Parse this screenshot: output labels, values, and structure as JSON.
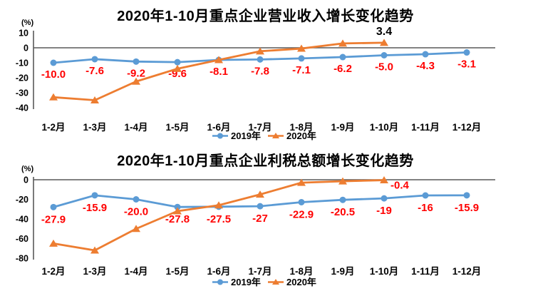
{
  "colors": {
    "series_2019": "#5B9BD5",
    "series_2020": "#ED7D31",
    "data_label_red": "#FF0000",
    "axis_line": "#595959",
    "text": "#000000",
    "background": "#FFFFFF"
  },
  "chart_data": [
    {
      "type": "line",
      "title": "2020年1-10月重点企业营业收入增长变化趋势",
      "unit_label": "(%)",
      "categories": [
        "1-2月",
        "1-3月",
        "1-4月",
        "1-5月",
        "1-6月",
        "1-7月",
        "1-8月",
        "1-9月",
        "1-10月",
        "1-11月",
        "1-12月"
      ],
      "y_axis": {
        "ticks": [
          10,
          0,
          -10,
          -20,
          -30,
          -40
        ],
        "max": 10,
        "min": -40,
        "grid": false
      },
      "series": [
        {
          "name": "2019年",
          "color": "#5B9BD5",
          "marker": "circle",
          "values": [
            -10.0,
            -7.6,
            -9.2,
            -9.6,
            -8.1,
            -7.8,
            -7.1,
            -6.2,
            -5.0,
            -4.3,
            -3.1
          ],
          "labels": [
            "-10.0",
            "-7.6",
            "-9.2",
            "-9.6",
            "-8.1",
            "-7.8",
            "-7.1",
            "-6.2",
            "-5.0",
            "-4.3",
            "-3.1"
          ],
          "labels_color": "#FF0000",
          "labels_position": "below"
        },
        {
          "name": "2020年",
          "color": "#ED7D31",
          "marker": "triangle",
          "values": [
            -33,
            -35,
            -22.5,
            -14,
            -8.1,
            -2.3,
            -0.5,
            2.9,
            3.4
          ],
          "last_point_label": {
            "text": "3.4",
            "color": "#000000",
            "position": "above"
          }
        }
      ],
      "legend": {
        "position": "bottom",
        "items": [
          "2019年",
          "2020年"
        ]
      }
    },
    {
      "type": "line",
      "title": "2020年1-10月重点企业利税总额增长变化趋势",
      "unit_label": "(%)",
      "categories": [
        "1-2月",
        "1-3月",
        "1-4月",
        "1-5月",
        "1-6月",
        "1-7月",
        "1-8月",
        "1-9月",
        "1-10月",
        "1-11月",
        "1-12月"
      ],
      "y_axis": {
        "ticks": [
          0,
          -20,
          -40,
          -60,
          -80
        ],
        "max": 0,
        "min": -80,
        "grid": false
      },
      "series": [
        {
          "name": "2019年",
          "color": "#5B9BD5",
          "marker": "circle",
          "values": [
            -27.9,
            -15.9,
            -20.0,
            -27.8,
            -27.5,
            -27,
            -22.9,
            -20.5,
            -19,
            -16,
            -15.9
          ],
          "labels": [
            "-27.9",
            "-15.9",
            "-20.0",
            "-27.8",
            "-27.5",
            "-27",
            "-22.9",
            "-20.5",
            "-19",
            "-16",
            "-15.9"
          ],
          "labels_color": "#FF0000",
          "labels_position": "below"
        },
        {
          "name": "2020年",
          "color": "#ED7D31",
          "marker": "triangle",
          "values": [
            -65,
            -72,
            -50,
            -32,
            -26,
            -15,
            -3,
            -1.5,
            -0.4
          ],
          "last_point_label": {
            "text": "-0.4",
            "color": "#FF0000",
            "position": "right"
          }
        }
      ],
      "legend": {
        "position": "bottom",
        "items": [
          "2019年",
          "2020年"
        ]
      }
    }
  ]
}
